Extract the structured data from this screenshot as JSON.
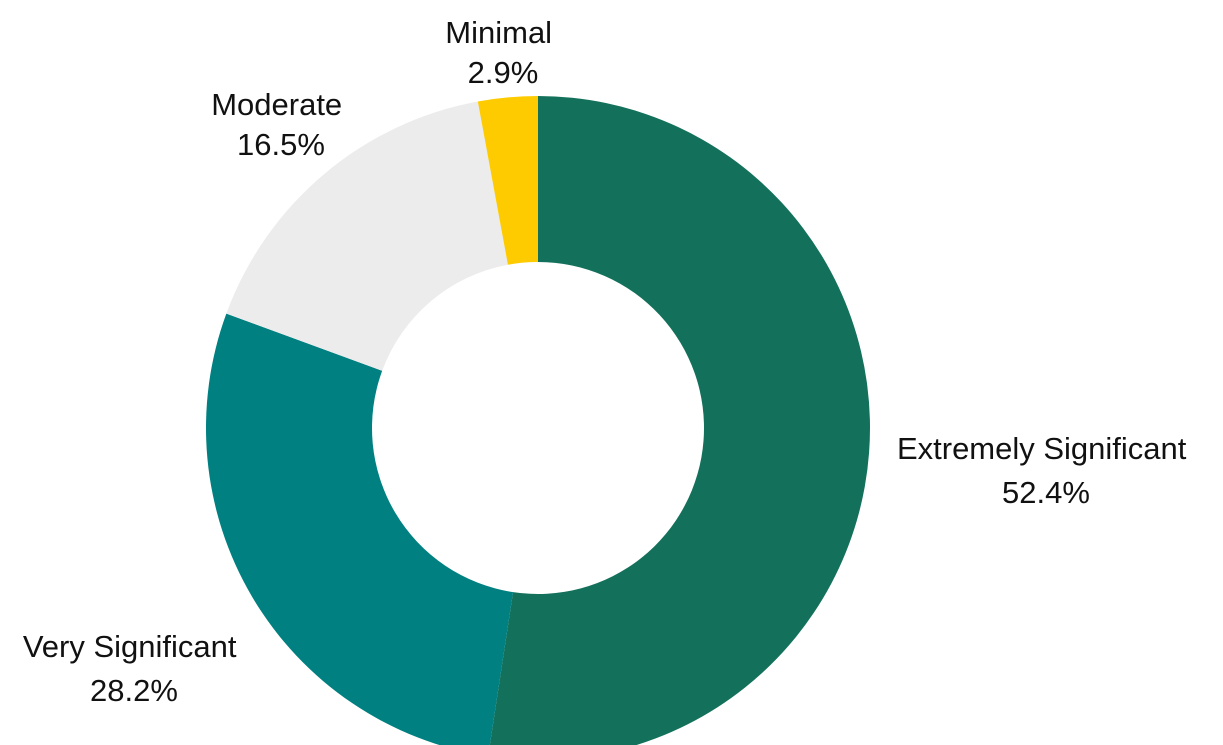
{
  "chart_data": {
    "type": "pie",
    "variant": "donut",
    "title": "",
    "categories": [
      "Extremely Significant",
      "Very Significant",
      "Moderate",
      "Minimal"
    ],
    "values": [
      52.4,
      28.2,
      16.5,
      2.9
    ],
    "value_labels": [
      "52.4%",
      "28.2%",
      "16.5%",
      "2.9%"
    ],
    "colors": [
      "#13715b",
      "#008080",
      "#ececec",
      "#fdcb00"
    ],
    "start_angle": "12 o'clock",
    "direction": "clockwise",
    "legend": "none",
    "label_position": "outside"
  }
}
